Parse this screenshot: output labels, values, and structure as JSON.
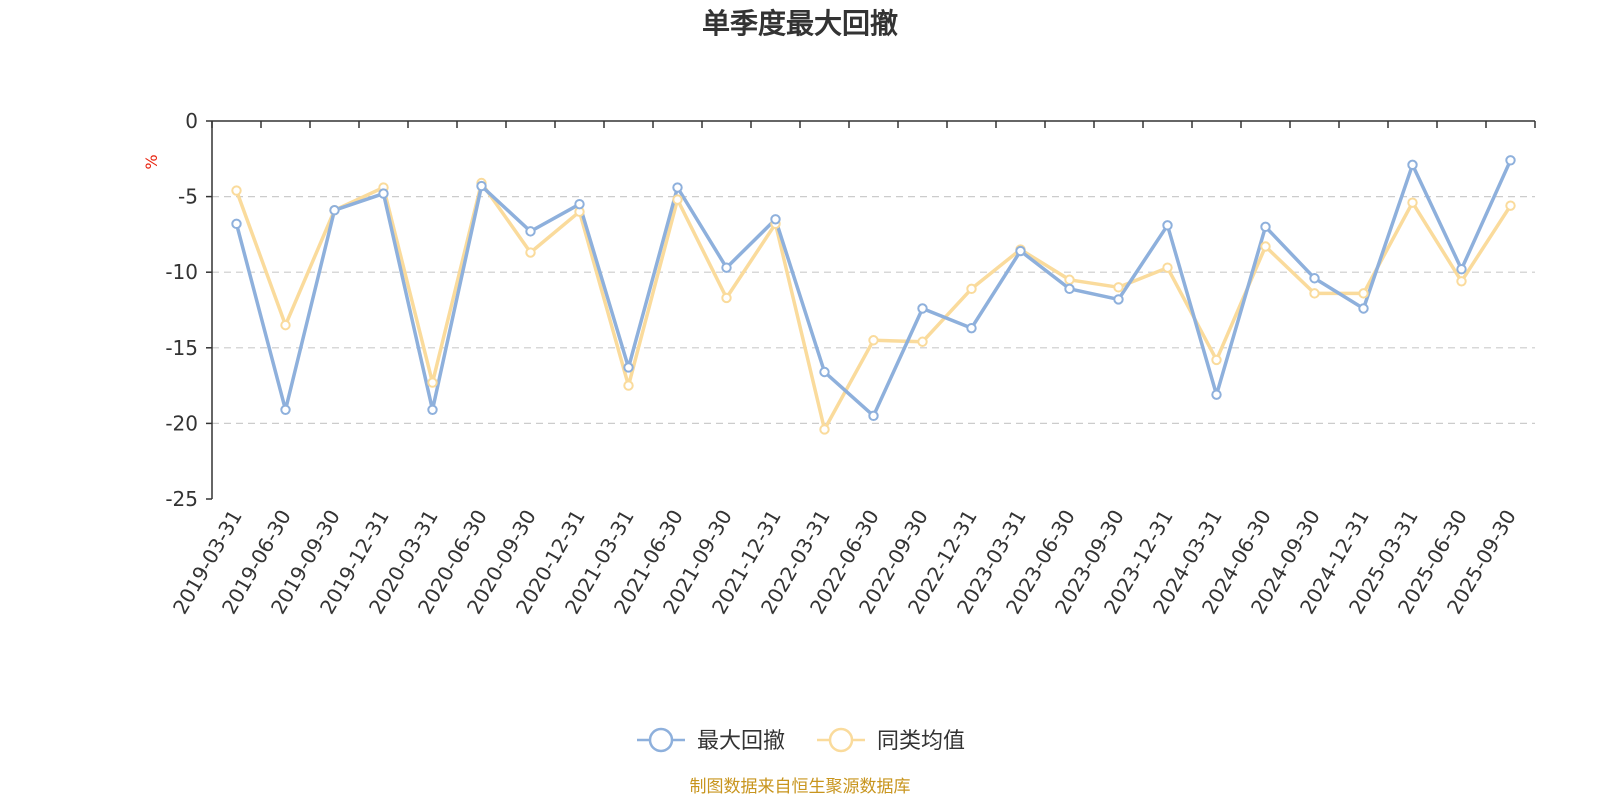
{
  "chart_data": {
    "type": "line",
    "title": "单季度最大回撤",
    "ylabel": "%",
    "xlabel": "",
    "ylim": [
      -25,
      0
    ],
    "yticks": [
      0,
      -5,
      -10,
      -15,
      -20,
      -25
    ],
    "ytick_labels": [
      "0",
      "-5",
      "-10",
      "-15",
      "-20",
      "-25"
    ],
    "grid": true,
    "legend_position": "bottom-center",
    "categories": [
      "2019-03-31",
      "2019-06-30",
      "2019-09-30",
      "2019-12-31",
      "2020-03-31",
      "2020-06-30",
      "2020-09-30",
      "2020-12-31",
      "2021-03-31",
      "2021-06-30",
      "2021-09-30",
      "2021-12-31",
      "2022-03-31",
      "2022-06-30",
      "2022-09-30",
      "2022-12-31",
      "2023-03-31",
      "2023-06-30",
      "2023-09-30",
      "2023-12-31",
      "2024-03-31",
      "2024-06-30",
      "2024-09-30",
      "2024-12-31",
      "2025-03-31",
      "2025-06-30",
      "2025-09-30"
    ],
    "series": [
      {
        "name": "最大回撤",
        "color": "#8eb0dc",
        "values": [
          -6.8,
          -19.1,
          -5.9,
          -4.8,
          -19.1,
          -4.3,
          -7.3,
          -5.5,
          -16.3,
          -4.4,
          -9.7,
          -6.5,
          -16.6,
          -19.5,
          -12.4,
          -13.7,
          -8.6,
          -11.1,
          -11.8,
          -6.9,
          -18.1,
          -7.0,
          -10.4,
          -12.4,
          -2.9,
          -9.8,
          -2.6
        ]
      },
      {
        "name": "同类均值",
        "color": "#fadb9c",
        "values": [
          -4.6,
          -13.5,
          -5.9,
          -4.4,
          -17.3,
          -4.1,
          -8.7,
          -6.0,
          -17.5,
          -5.2,
          -11.7,
          -6.8,
          -20.4,
          -14.5,
          -14.6,
          -11.1,
          -8.5,
          -10.5,
          -11.0,
          -9.7,
          -15.8,
          -8.3,
          -11.4,
          -11.4,
          -5.4,
          -10.6,
          -5.6
        ]
      }
    ]
  },
  "colors": {
    "axis": "#333333",
    "grid": "#cccccc",
    "unit": "#e8230f",
    "source": "#c8951e"
  },
  "footer": {
    "source_text": "制图数据来自恒生聚源数据库"
  }
}
